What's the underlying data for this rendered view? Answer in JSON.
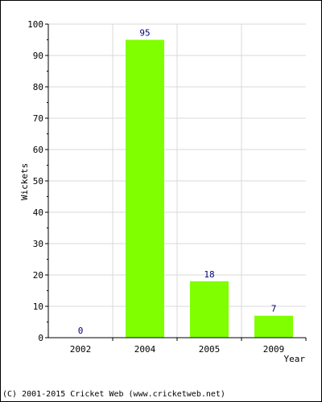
{
  "chart_data": {
    "type": "bar",
    "categories": [
      "2002",
      "2004",
      "2005",
      "2009"
    ],
    "values": [
      0,
      95,
      18,
      7
    ],
    "data_labels": [
      "0",
      "95",
      "18",
      "7"
    ],
    "xlabel": "Year",
    "ylabel": "Wickets",
    "ylim": [
      0,
      100
    ],
    "yticks": [
      0,
      10,
      20,
      30,
      40,
      50,
      60,
      70,
      80,
      90,
      100
    ],
    "grid": true,
    "bar_color": "#80ff00",
    "label_color": "#000080"
  },
  "footer": "(C) 2001-2015 Cricket Web (www.cricketweb.net)"
}
